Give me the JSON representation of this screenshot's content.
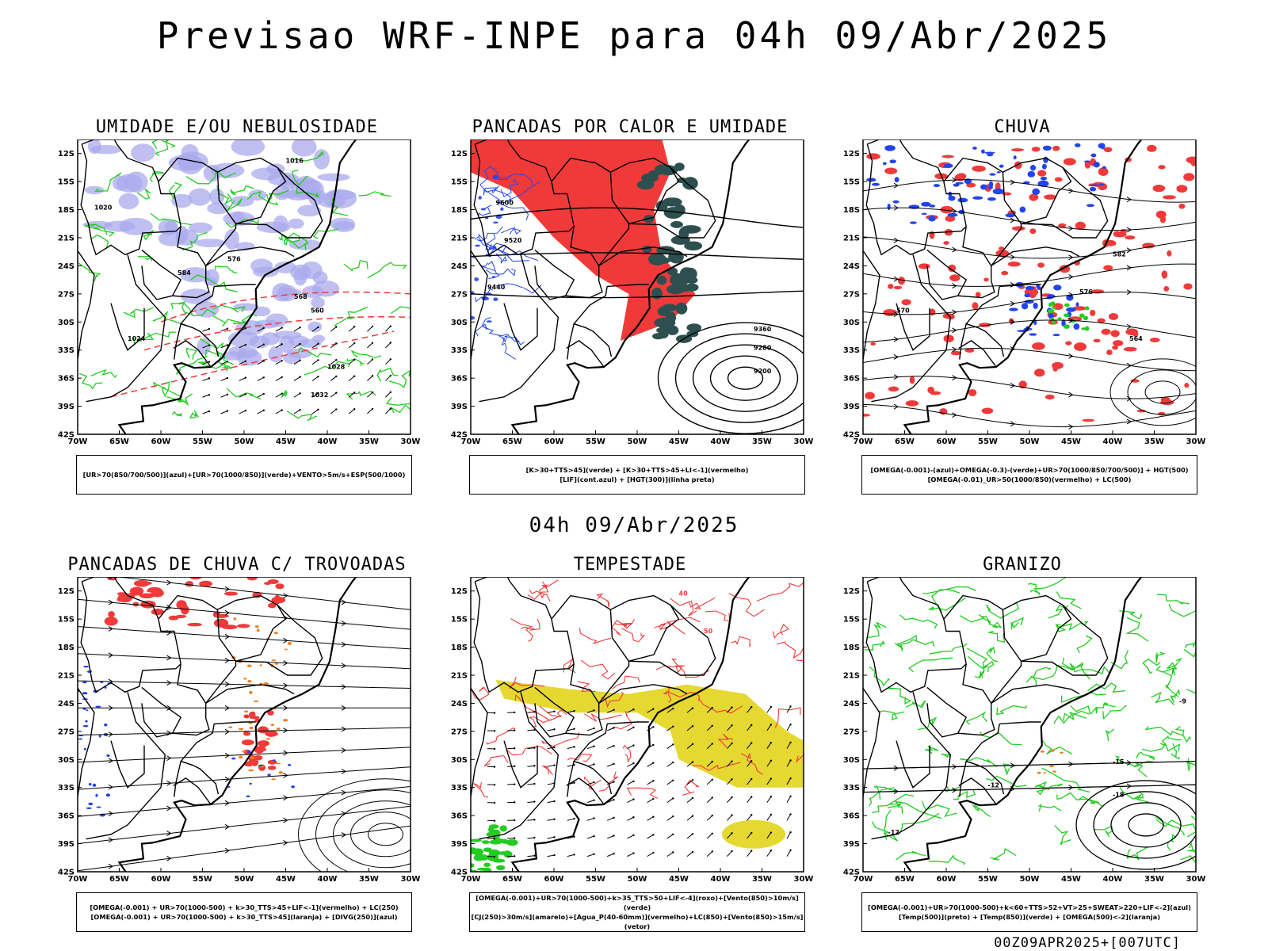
{
  "header": {
    "title": "Previsao WRF-INPE  para 04h 09/Abr/2025",
    "mid_title": "04h 09/Abr/2025",
    "footer_stamp": "00Z09APR2025+[007UTC]"
  },
  "axes": {
    "lat_labels": [
      "12S",
      "15S",
      "18S",
      "21S",
      "24S",
      "27S",
      "30S",
      "33S",
      "36S",
      "39S",
      "42S"
    ],
    "lon_labels": [
      "70W",
      "65W",
      "60W",
      "55W",
      "50W",
      "45W",
      "40W",
      "35W",
      "30W"
    ]
  },
  "colors": {
    "blue_shade": "#a9a9ee",
    "green_contour": "#22cc22",
    "red": "#f03a3a",
    "dark_teal": "#2e4f4f",
    "blue": "#2244ee",
    "orange": "#f08020",
    "yellow": "#e5d830",
    "bright_green": "#22cc22"
  },
  "panels": [
    {
      "title": "UMIDADE E/OU NEBULOSIDADE",
      "legend": [
        "[UR>70(850/700/500)](azul)+[UR>70(1000/850)](verde)+VENTO>5m/s+ESP(500/1000)"
      ],
      "contour_labels": [
        "1016",
        "1020",
        "1024",
        "1028",
        "1032",
        "584",
        "576",
        "568",
        "560"
      ]
    },
    {
      "title": "PANCADAS POR CALOR E UMIDADE",
      "legend": [
        "[K>30+TTS>45](verde) + [K>30+TTS>45+LI<-1](vermelho)",
        "[LIF](cont.azul) + [HGT(300)](linha preta)"
      ],
      "contour_labels": [
        "9600",
        "9520",
        "9440",
        "9360",
        "9280",
        "9200"
      ]
    },
    {
      "title": "CHUVA",
      "legend": [
        "[OMEGA(-0.001)-(azul)+OMEGA(-0.3)-(verde)+UR>70(1000/850/700/500)] + HGT(500)",
        "[OMEGA(-0.01)_UR>50(1000/850)(vermelho) + LC(500)"
      ],
      "contour_labels": [
        "582",
        "576",
        "570",
        "564"
      ]
    },
    {
      "title": "PANCADAS DE CHUVA C/ TROVOADAS",
      "legend": [
        "[OMEGA(-0.001) + UR>70(1000-500) + k>30_TTS>45+LIF<-1](vermelho) + LC(250)",
        "[OMEGA(-0.001) + UR>70(1000-500) + k>30_TTS>45](laranja) + [DIVG(250)](azul)"
      ],
      "contour_labels": []
    },
    {
      "title": "TEMPESTADE",
      "legend": [
        "[OMEGA(-0.001)+UR>70(1000-500)+k>35_TTS>50+LIF<-4](roxo)+[Vento(850)>10m/s](verde)",
        "[CJ(250)>30m/s](amarelo)+[Agua_P(40-60mm)](vermelho)+LC(850)+[Vento(850)>15m/s](vetor)"
      ],
      "contour_labels": [
        "40",
        "50"
      ]
    },
    {
      "title": "GRANIZO",
      "legend": [
        "[OMEGA(-0.001)+UR>70(1000-500)+k<60+TTS>52+VT>25+SWEAT>220+LIF<-2](azul)",
        "[Temp(500)](preto) + [Temp(850)](verde) + [OMEGA(500)<-2](laranja)"
      ],
      "contour_labels": [
        "-12",
        "-15",
        "-18",
        "-9",
        "-12"
      ]
    }
  ]
}
